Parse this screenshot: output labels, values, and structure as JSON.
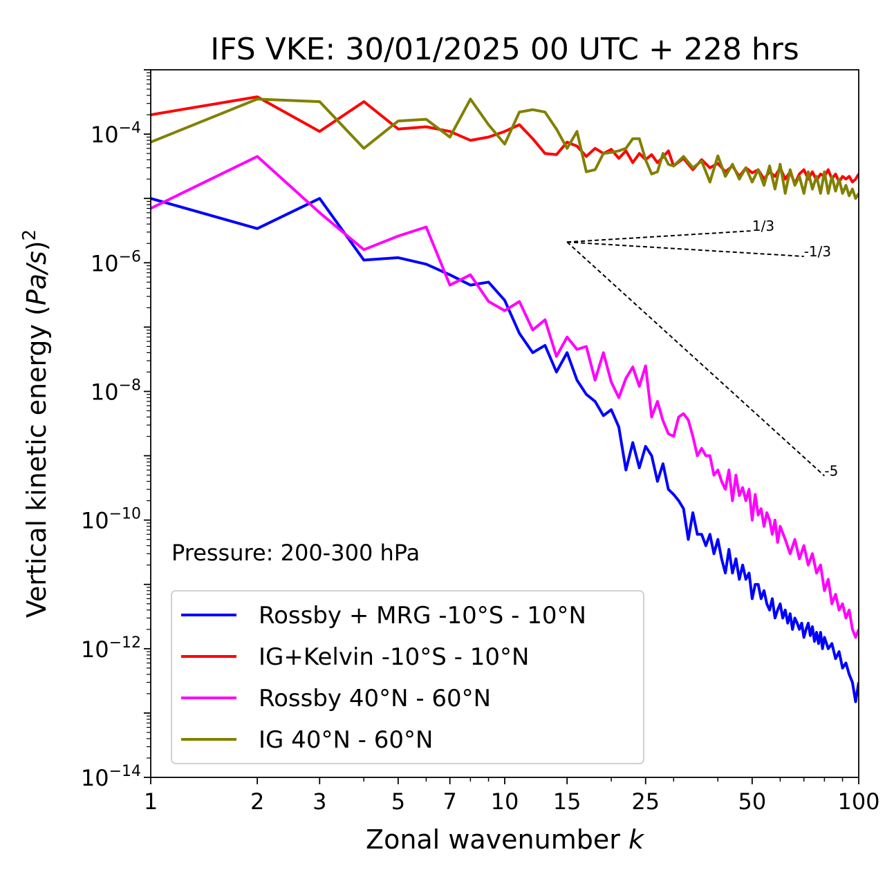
{
  "chart_data": {
    "type": "line",
    "title": "IFS VKE: 30/01/2025 00 UTC + 228 hrs",
    "xlabel_text": "Zonal wavenumber ",
    "xlabel_var": "k",
    "ylabel_text": "Vertical kinetic energy (",
    "ylabel_var": "Pa/s",
    "ylabel_close": ")",
    "ylabel_exp": "2",
    "xscale": "log",
    "yscale": "log",
    "xlim": [
      1,
      100
    ],
    "ylim": [
      1e-14,
      0.001
    ],
    "xticks": [
      1,
      2,
      3,
      5,
      7,
      10,
      15,
      25,
      50,
      100
    ],
    "xtick_labels": [
      "1",
      "2",
      "3",
      "5",
      "7",
      "10",
      "15",
      "25",
      "50",
      "100"
    ],
    "yticks_exp": [
      "-4",
      "-6",
      "-8",
      "-10",
      "-12",
      "-14"
    ],
    "ytick_base": "10",
    "grid": false,
    "legend_position": "lower-left",
    "annotation": "Pressure: 200-300 hPa",
    "slope_lines": [
      {
        "label": "1/3",
        "slope": 0.3333,
        "x_start": 15,
        "x_end": 50,
        "y_start": 2.1e-06
      },
      {
        "label": "-1/3",
        "slope": -0.3333,
        "x_start": 15,
        "x_end": 70,
        "y_start": 2.1e-06
      },
      {
        "label": "-5",
        "slope": -5,
        "x_start": 15,
        "x_end": 80,
        "y_start": 2.1e-06
      }
    ],
    "series": [
      {
        "name": "Rossby + MRG -10°S - 10°N",
        "color": "#0000ff",
        "points": [
          [
            1,
            1e-05
          ],
          [
            2,
            3.4e-06
          ],
          [
            3,
            1e-05
          ],
          [
            4,
            1.1e-06
          ],
          [
            5,
            1.2e-06
          ],
          [
            6,
            9.5e-07
          ],
          [
            7,
            6.5e-07
          ],
          [
            8,
            4.5e-07
          ],
          [
            9,
            5e-07
          ],
          [
            10,
            2.6e-07
          ],
          [
            11,
            8e-08
          ],
          [
            12,
            4e-08
          ],
          [
            13,
            5.2e-08
          ],
          [
            14,
            2e-08
          ],
          [
            15,
            4e-08
          ],
          [
            16,
            1.5e-08
          ],
          [
            17,
            9e-09
          ],
          [
            18,
            7e-09
          ],
          [
            19,
            4.2e-09
          ],
          [
            20,
            5.2e-09
          ],
          [
            21,
            2.8e-09
          ],
          [
            22,
            6e-10
          ],
          [
            23,
            1.6e-09
          ],
          [
            24,
            6.5e-10
          ],
          [
            25,
            1.4e-09
          ],
          [
            26,
            1e-09
          ],
          [
            27,
            4e-10
          ],
          [
            28,
            7.5e-10
          ],
          [
            29,
            3e-10
          ],
          [
            30,
            2.5e-10
          ],
          [
            31,
            2e-10
          ],
          [
            32,
            1.5e-10
          ],
          [
            33,
            5e-11
          ],
          [
            34,
            1.3e-10
          ],
          [
            35,
            6e-11
          ],
          [
            36,
            6e-11
          ],
          [
            37,
            4e-11
          ],
          [
            38,
            6e-11
          ],
          [
            39,
            3e-11
          ],
          [
            40,
            5e-11
          ],
          [
            41,
            2.5e-11
          ],
          [
            42,
            1.5e-11
          ],
          [
            43,
            3.5e-11
          ],
          [
            44,
            1.5e-11
          ],
          [
            45,
            2.5e-11
          ],
          [
            46,
            1.2e-11
          ],
          [
            47,
            2e-11
          ],
          [
            48,
            1.2e-11
          ],
          [
            49,
            1.5e-11
          ],
          [
            50,
            6e-12
          ],
          [
            51,
            1e-11
          ],
          [
            52,
            1e-11
          ],
          [
            53,
            6e-12
          ],
          [
            54,
            8e-12
          ],
          [
            55,
            5e-12
          ],
          [
            56,
            4e-12
          ],
          [
            57,
            6e-12
          ],
          [
            58,
            3e-12
          ],
          [
            59,
            4e-12
          ],
          [
            60,
            5e-12
          ],
          [
            61,
            3e-12
          ],
          [
            62,
            4e-12
          ],
          [
            63,
            2.5e-12
          ],
          [
            64,
            3.5e-12
          ],
          [
            65,
            2e-12
          ],
          [
            66,
            3e-12
          ],
          [
            67,
            2.5e-12
          ],
          [
            68,
            2e-12
          ],
          [
            69,
            2.5e-12
          ],
          [
            70,
            1.5e-12
          ],
          [
            71,
            2e-12
          ],
          [
            72,
            2.5e-12
          ],
          [
            73,
            1.6e-12
          ],
          [
            74,
            2.2e-12
          ],
          [
            75,
            1.3e-12
          ],
          [
            76,
            1.8e-12
          ],
          [
            77,
            1.2e-12
          ],
          [
            78,
            1.8e-12
          ],
          [
            79,
            1e-12
          ],
          [
            80,
            1.5e-12
          ],
          [
            82,
            1e-12
          ],
          [
            84,
            1.2e-12
          ],
          [
            86,
            7e-13
          ],
          [
            88,
            9e-13
          ],
          [
            90,
            5e-13
          ],
          [
            92,
            6e-13
          ],
          [
            94,
            4e-13
          ],
          [
            96,
            3e-13
          ],
          [
            98,
            1.5e-13
          ],
          [
            100,
            3e-13
          ]
        ]
      },
      {
        "name": "IG+Kelvin -10°S - 10°N",
        "color": "#ff0000",
        "points": [
          [
            1,
            0.0002
          ],
          [
            2,
            0.00038
          ],
          [
            3,
            0.00011
          ],
          [
            4,
            0.00032
          ],
          [
            5,
            0.00012
          ],
          [
            6,
            0.00013
          ],
          [
            7,
            0.00011
          ],
          [
            8,
            8e-05
          ],
          [
            9,
            9e-05
          ],
          [
            10,
            0.00011
          ],
          [
            11,
            0.00014
          ],
          [
            12,
            8.5e-05
          ],
          [
            13,
            5e-05
          ],
          [
            14,
            4.8e-05
          ],
          [
            15,
            7.5e-05
          ],
          [
            16,
            6.5e-05
          ],
          [
            17,
            4.5e-05
          ],
          [
            18,
            6e-05
          ],
          [
            19,
            5e-05
          ],
          [
            20,
            5.8e-05
          ],
          [
            21,
            4.2e-05
          ],
          [
            22,
            5.5e-05
          ],
          [
            23,
            3.6e-05
          ],
          [
            24,
            5e-05
          ],
          [
            25,
            4e-05
          ],
          [
            26,
            4.8e-05
          ],
          [
            27,
            3.6e-05
          ],
          [
            28,
            4.4e-05
          ],
          [
            29,
            5.5e-05
          ],
          [
            30,
            3.2e-05
          ],
          [
            32,
            4.2e-05
          ],
          [
            34,
            2.8e-05
          ],
          [
            36,
            4e-05
          ],
          [
            38,
            3e-05
          ],
          [
            40,
            3.5e-05
          ],
          [
            42,
            2.6e-05
          ],
          [
            44,
            3.2e-05
          ],
          [
            46,
            2.2e-05
          ],
          [
            48,
            3e-05
          ],
          [
            50,
            2.5e-05
          ],
          [
            52,
            2.8e-05
          ],
          [
            54,
            2e-05
          ],
          [
            56,
            2.6e-05
          ],
          [
            58,
            2.2e-05
          ],
          [
            60,
            3e-05
          ],
          [
            62,
            2e-05
          ],
          [
            64,
            2.6e-05
          ],
          [
            66,
            1.7e-05
          ],
          [
            68,
            2.4e-05
          ],
          [
            70,
            2.8e-05
          ],
          [
            72,
            2e-05
          ],
          [
            74,
            2.6e-05
          ],
          [
            76,
            1.9e-05
          ],
          [
            78,
            2.4e-05
          ],
          [
            80,
            2.2e-05
          ],
          [
            82,
            2.8e-05
          ],
          [
            84,
            2e-05
          ],
          [
            86,
            2.4e-05
          ],
          [
            88,
            1.8e-05
          ],
          [
            90,
            2.2e-05
          ],
          [
            92,
            2e-05
          ],
          [
            94,
            2.2e-05
          ],
          [
            96,
            1.8e-05
          ],
          [
            98,
            2e-05
          ],
          [
            100,
            2.4e-05
          ]
        ]
      },
      {
        "name": "Rossby 40°N - 60°N",
        "color": "#ff00ff",
        "points": [
          [
            1,
            7e-06
          ],
          [
            2,
            4.5e-05
          ],
          [
            3,
            6e-06
          ],
          [
            4,
            1.6e-06
          ],
          [
            5,
            2.6e-06
          ],
          [
            6,
            3.6e-06
          ],
          [
            7,
            4.5e-07
          ],
          [
            8,
            6.5e-07
          ],
          [
            9,
            2.5e-07
          ],
          [
            10,
            1.8e-07
          ],
          [
            11,
            2.5e-07
          ],
          [
            12,
            9e-08
          ],
          [
            13,
            1.3e-07
          ],
          [
            14,
            3.5e-08
          ],
          [
            15,
            7e-08
          ],
          [
            16,
            4.5e-08
          ],
          [
            17,
            5e-08
          ],
          [
            18,
            1.5e-08
          ],
          [
            19,
            4e-08
          ],
          [
            20,
            1.4e-08
          ],
          [
            21,
            8e-09
          ],
          [
            22,
            1.6e-08
          ],
          [
            23,
            2.4e-08
          ],
          [
            24,
            1.2e-08
          ],
          [
            25,
            2.5e-08
          ],
          [
            26,
            4e-09
          ],
          [
            27,
            7e-09
          ],
          [
            28,
            3.5e-09
          ],
          [
            29,
            2.2e-09
          ],
          [
            30,
            2e-09
          ],
          [
            31,
            4e-09
          ],
          [
            32,
            4.5e-09
          ],
          [
            33,
            3.6e-09
          ],
          [
            34,
            2e-09
          ],
          [
            35,
            1e-09
          ],
          [
            36,
            1.3e-09
          ],
          [
            37,
            1e-09
          ],
          [
            38,
            1e-09
          ],
          [
            39,
            5e-10
          ],
          [
            40,
            6e-10
          ],
          [
            41,
            4e-10
          ],
          [
            42,
            3e-10
          ],
          [
            43,
            6e-10
          ],
          [
            44,
            2e-10
          ],
          [
            45,
            5e-10
          ],
          [
            46,
            2.4e-10
          ],
          [
            47,
            3.2e-10
          ],
          [
            48,
            2e-10
          ],
          [
            49,
            3e-10
          ],
          [
            50,
            1e-10
          ],
          [
            51,
            2.5e-10
          ],
          [
            52,
            1.2e-10
          ],
          [
            53,
            1.5e-10
          ],
          [
            54,
            8e-11
          ],
          [
            55,
            1.3e-10
          ],
          [
            56,
            1e-10
          ],
          [
            57,
            6e-11
          ],
          [
            58,
            1e-10
          ],
          [
            59,
            4.5e-11
          ],
          [
            60,
            8e-11
          ],
          [
            62,
            5e-11
          ],
          [
            64,
            3e-11
          ],
          [
            66,
            5e-11
          ],
          [
            68,
            2.5e-11
          ],
          [
            70,
            4e-11
          ],
          [
            72,
            2e-11
          ],
          [
            74,
            3e-11
          ],
          [
            76,
            1.5e-11
          ],
          [
            78,
            2e-11
          ],
          [
            80,
            8e-12
          ],
          [
            82,
            1.2e-11
          ],
          [
            84,
            5e-12
          ],
          [
            86,
            7e-12
          ],
          [
            88,
            4e-12
          ],
          [
            90,
            5e-12
          ],
          [
            92,
            3e-12
          ],
          [
            94,
            4e-12
          ],
          [
            96,
            2e-12
          ],
          [
            98,
            1.5e-12
          ],
          [
            100,
            2e-12
          ]
        ]
      },
      {
        "name": "IG 40°N - 60°N",
        "color": "#808000",
        "points": [
          [
            1,
            7.5e-05
          ],
          [
            2,
            0.00035
          ],
          [
            3,
            0.00032
          ],
          [
            4,
            6e-05
          ],
          [
            5,
            0.00016
          ],
          [
            6,
            0.00017
          ],
          [
            7,
            9e-05
          ],
          [
            8,
            0.00035
          ],
          [
            9,
            0.00014
          ],
          [
            10,
            7e-05
          ],
          [
            11,
            0.00022
          ],
          [
            12,
            0.00024
          ],
          [
            13,
            0.00022
          ],
          [
            14,
            0.00012
          ],
          [
            15,
            6e-05
          ],
          [
            16,
            0.00011
          ],
          [
            17,
            2.6e-05
          ],
          [
            18,
            2.8e-05
          ],
          [
            19,
            5e-05
          ],
          [
            20,
            5.2e-05
          ],
          [
            21,
            5.5e-05
          ],
          [
            22,
            6e-05
          ],
          [
            23,
            8.5e-05
          ],
          [
            24,
            8.5e-05
          ],
          [
            25,
            4e-05
          ],
          [
            26,
            2.4e-05
          ],
          [
            27,
            2.6e-05
          ],
          [
            28,
            5e-05
          ],
          [
            29,
            3.4e-05
          ],
          [
            30,
            3.2e-05
          ],
          [
            32,
            4.5e-05
          ],
          [
            34,
            3e-05
          ],
          [
            36,
            3.8e-05
          ],
          [
            38,
            1.8e-05
          ],
          [
            40,
            4.6e-05
          ],
          [
            42,
            2.2e-05
          ],
          [
            44,
            3.4e-05
          ],
          [
            46,
            2e-05
          ],
          [
            48,
            3e-05
          ],
          [
            50,
            1.8e-05
          ],
          [
            52,
            2.8e-05
          ],
          [
            54,
            1.6e-05
          ],
          [
            56,
            3.2e-05
          ],
          [
            58,
            1.4e-05
          ],
          [
            60,
            3.4e-05
          ],
          [
            62,
            1.2e-05
          ],
          [
            64,
            2.8e-05
          ],
          [
            66,
            1.6e-05
          ],
          [
            68,
            2.2e-05
          ],
          [
            70,
            1.2e-05
          ],
          [
            72,
            2.6e-05
          ],
          [
            74,
            1.4e-05
          ],
          [
            76,
            2.2e-05
          ],
          [
            78,
            1.2e-05
          ],
          [
            80,
            2.6e-05
          ],
          [
            82,
            1.2e-05
          ],
          [
            84,
            2.2e-05
          ],
          [
            86,
            1.3e-05
          ],
          [
            88,
            2e-05
          ],
          [
            90,
            1.2e-05
          ],
          [
            92,
            1.6e-05
          ],
          [
            94,
            1.1e-05
          ],
          [
            96,
            1.4e-05
          ],
          [
            98,
            1e-05
          ],
          [
            100,
            1.2e-05
          ]
        ]
      }
    ]
  }
}
